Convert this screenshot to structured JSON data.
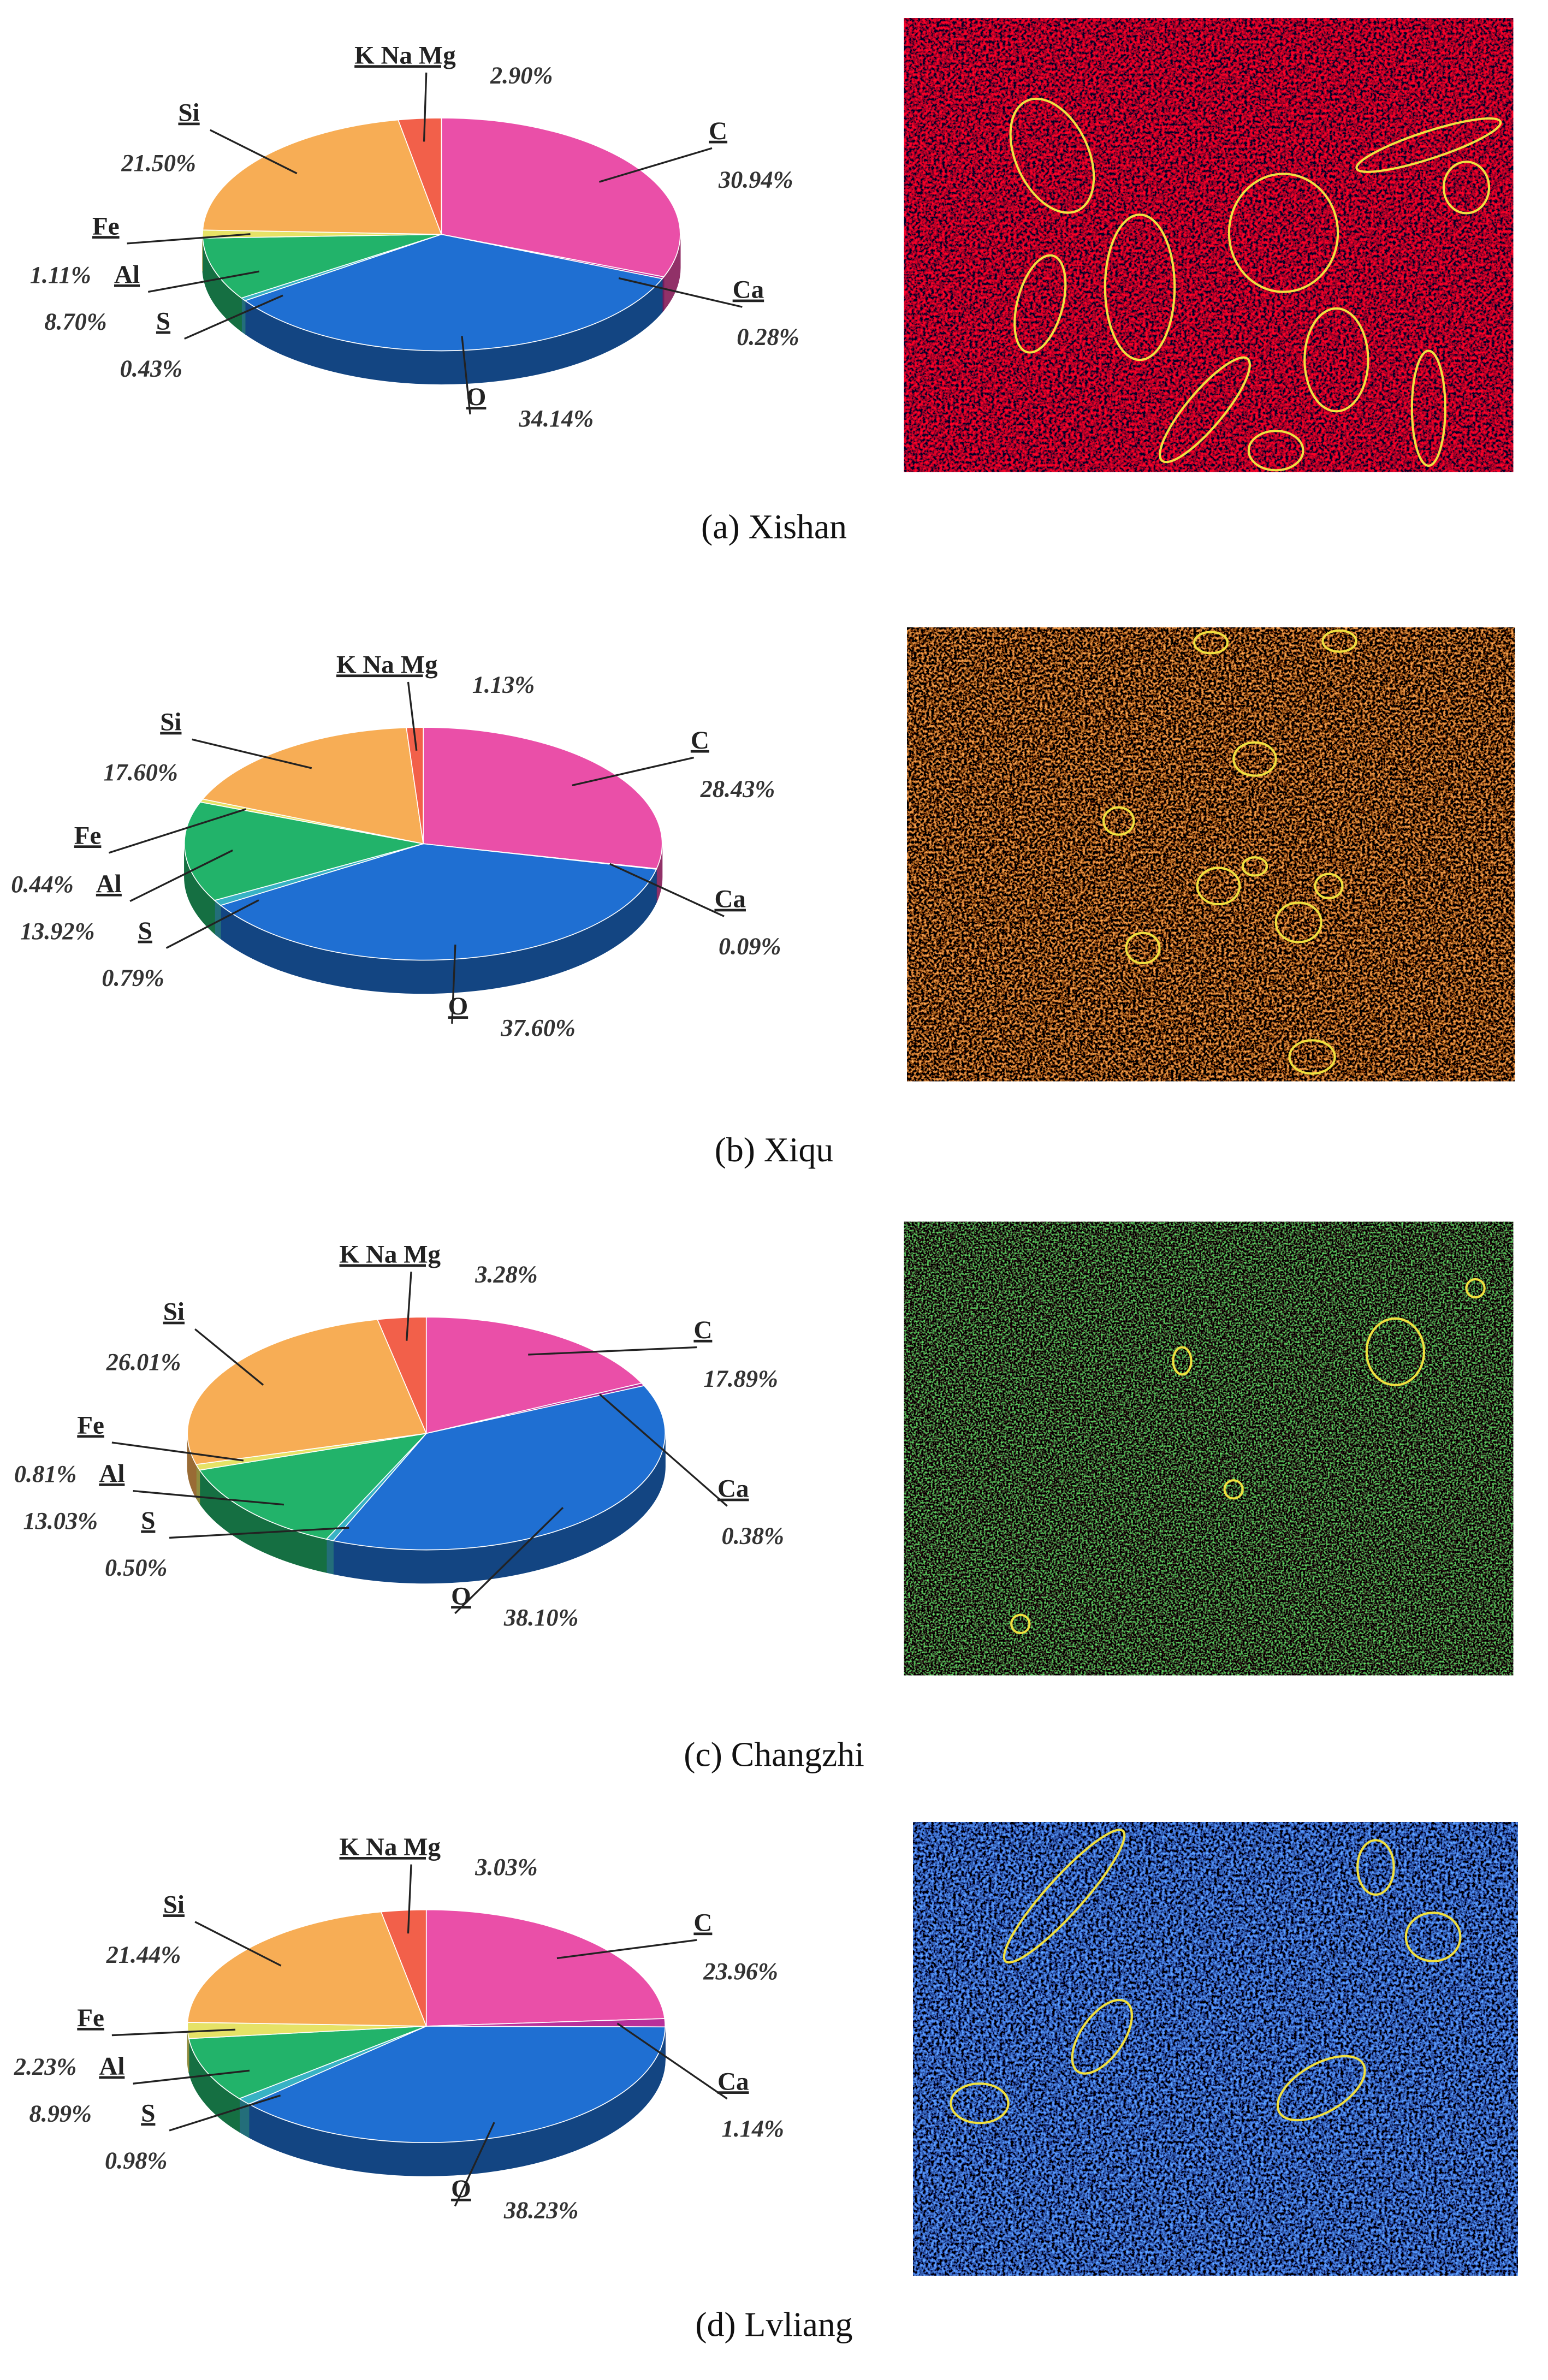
{
  "chart_data": [
    {
      "type": "pie",
      "caption": "(a) Xishan",
      "categories": [
        "C",
        "Ca",
        "O",
        "S",
        "Al",
        "Fe",
        "Si",
        "K Na Mg"
      ],
      "values": [
        30.94,
        0.28,
        34.14,
        0.43,
        8.7,
        1.11,
        21.5,
        2.9
      ],
      "value_labels": [
        "30.94%",
        "0.28%",
        "34.14%",
        "0.43%",
        "8.70%",
        "1.11%",
        "21.50%",
        "2.90%"
      ],
      "colors": [
        "#ea4fa8",
        "#b8309a",
        "#1f6fd2",
        "#38b2c4",
        "#22b36a",
        "#e6e266",
        "#f7ad55",
        "#f2604a"
      ]
    },
    {
      "type": "pie",
      "caption": "(b) Xiqu",
      "categories": [
        "C",
        "Ca",
        "O",
        "S",
        "Al",
        "Fe",
        "Si",
        "K Na Mg"
      ],
      "values": [
        28.43,
        0.09,
        37.6,
        0.79,
        13.92,
        0.44,
        17.6,
        1.13
      ],
      "value_labels": [
        "28.43%",
        "0.09%",
        "37.60%",
        "0.79%",
        "13.92%",
        "0.44%",
        "17.60%",
        "1.13%"
      ],
      "colors": [
        "#ea4fa8",
        "#b8309a",
        "#1f6fd2",
        "#38b2c4",
        "#22b36a",
        "#e6e266",
        "#f7ad55",
        "#f2604a"
      ]
    },
    {
      "type": "pie",
      "caption": "(c) Changzhi",
      "categories": [
        "C",
        "Ca",
        "O",
        "S",
        "Al",
        "Fe",
        "Si",
        "K Na Mg"
      ],
      "values": [
        17.89,
        0.38,
        38.1,
        0.5,
        13.03,
        0.81,
        26.01,
        3.28
      ],
      "value_labels": [
        "17.89%",
        "0.38%",
        "38.10%",
        "0.50%",
        "13.03%",
        "0.81%",
        "26.01%",
        "3.28%"
      ],
      "colors": [
        "#ea4fa8",
        "#b8309a",
        "#1f6fd2",
        "#38b2c4",
        "#22b36a",
        "#e6e266",
        "#f7ad55",
        "#f2604a"
      ]
    },
    {
      "type": "pie",
      "caption": "(d) Lvliang",
      "categories": [
        "C",
        "Ca",
        "O",
        "S",
        "Al",
        "Fe",
        "Si",
        "K Na Mg"
      ],
      "values": [
        23.96,
        1.14,
        38.23,
        0.98,
        8.99,
        2.23,
        21.44,
        3.03
      ],
      "value_labels": [
        "23.96%",
        "1.14%",
        "38.23%",
        "0.98%",
        "8.99%",
        "2.23%",
        "21.44%",
        "3.03%"
      ],
      "colors": [
        "#ea4fa8",
        "#b8309a",
        "#1f6fd2",
        "#38b2c4",
        "#22b36a",
        "#e6e266",
        "#f7ad55",
        "#f2604a"
      ]
    }
  ]
}
